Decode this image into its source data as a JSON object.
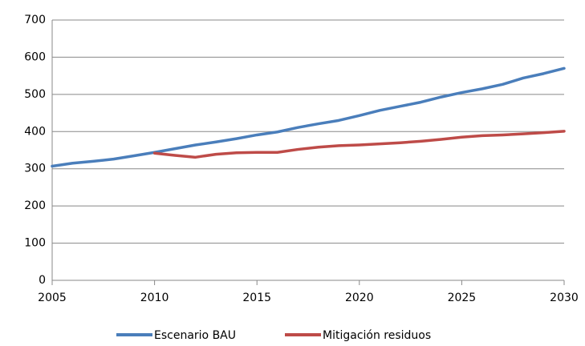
{
  "chart_data": {
    "type": "line",
    "x": [
      2005,
      2006,
      2007,
      2008,
      2009,
      2010,
      2011,
      2012,
      2013,
      2014,
      2015,
      2016,
      2017,
      2018,
      2019,
      2020,
      2021,
      2022,
      2023,
      2024,
      2025,
      2026,
      2027,
      2028,
      2029,
      2030
    ],
    "series": [
      {
        "name": "Escenario BAU",
        "color": "#4a7ebb",
        "values": [
          307,
          315,
          320,
          326,
          335,
          344,
          354,
          364,
          372,
          381,
          391,
          399,
          411,
          421,
          430,
          443,
          457,
          468,
          479,
          493,
          505,
          515,
          527,
          544,
          556,
          570
        ]
      },
      {
        "name": "Mitigación residuos",
        "color": "#be4b48",
        "values": [
          null,
          null,
          null,
          null,
          null,
          342,
          336,
          331,
          339,
          343,
          344,
          344,
          352,
          358,
          362,
          364,
          367,
          370,
          374,
          379,
          385,
          389,
          391,
          394,
          397,
          401
        ]
      }
    ],
    "xlim": [
      2005,
      2030
    ],
    "xticks": [
      2005,
      2010,
      2015,
      2020,
      2025,
      2030
    ],
    "ylim": [
      0,
      700
    ],
    "yticks": [
      0,
      100,
      200,
      300,
      400,
      500,
      600,
      700
    ],
    "grid": true,
    "legend": "bottom"
  }
}
